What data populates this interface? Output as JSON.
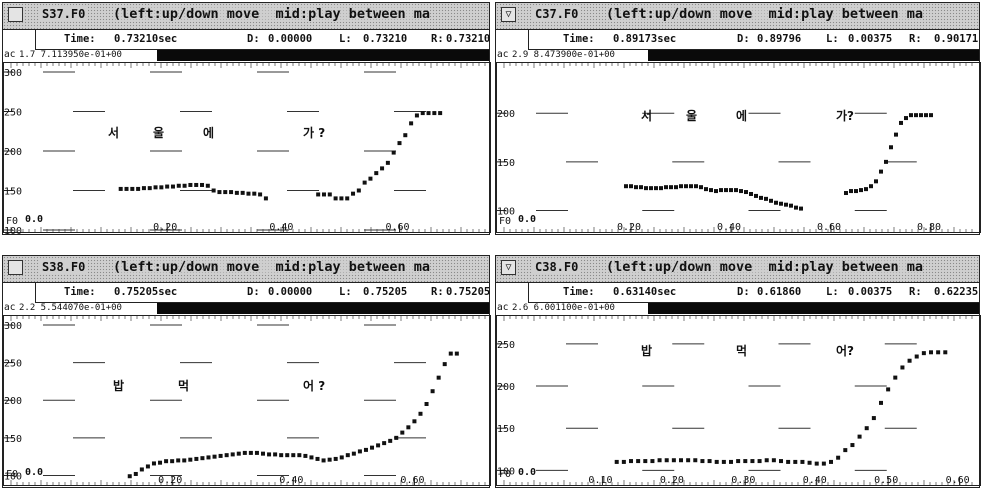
{
  "panels": [
    {
      "title": "S37.F0",
      "hint": "(left:up/down move  mid:play between ma",
      "time_label": "Time:",
      "time_value": "0.73210sec",
      "d_label": "D:",
      "d_value": "0.00000",
      "l_label": "L:",
      "l_value": "0.73210",
      "r_label": "R:",
      "r_value": "0.73210",
      "ac_label": "ac",
      "ac_value": "1.7 7.113950e-01+00",
      "f0_label": "F0",
      "zero_label": "0.0",
      "syllables": [
        "서",
        "울",
        "에",
        "가 ?"
      ],
      "chart_data": {
        "type": "scatter",
        "x_ticks": [
          "0.20",
          "0.40",
          "0.60"
        ],
        "y_ticks": [
          "300",
          "250",
          "200",
          "150",
          "100"
        ],
        "xlim": [
          0.0,
          0.73
        ],
        "ylim": [
          100,
          300
        ],
        "x": [
          0.12,
          0.13,
          0.14,
          0.15,
          0.16,
          0.17,
          0.18,
          0.19,
          0.2,
          0.21,
          0.22,
          0.23,
          0.24,
          0.25,
          0.26,
          0.27,
          0.28,
          0.29,
          0.3,
          0.31,
          0.32,
          0.33,
          0.34,
          0.35,
          0.36,
          0.37,
          0.46,
          0.47,
          0.48,
          0.49,
          0.5,
          0.51,
          0.52,
          0.53,
          0.54,
          0.55,
          0.56,
          0.57,
          0.58,
          0.59,
          0.6,
          0.61,
          0.62,
          0.63,
          0.64,
          0.65,
          0.66,
          0.67
        ],
        "y": [
          152,
          152,
          152,
          152,
          153,
          153,
          154,
          154,
          155,
          155,
          156,
          156,
          157,
          157,
          157,
          156,
          150,
          148,
          148,
          148,
          147,
          147,
          146,
          146,
          145,
          140,
          145,
          145,
          145,
          140,
          140,
          140,
          146,
          150,
          160,
          165,
          172,
          178,
          185,
          198,
          210,
          220,
          235,
          245,
          248,
          248,
          248,
          248
        ]
      }
    },
    {
      "title": "C37.F0",
      "hint": "(left:up/down move  mid:play between ma",
      "time_label": "Time:",
      "time_value": "0.89173sec",
      "d_label": "D:",
      "d_value": "0.89796",
      "l_label": "L:",
      "l_value": "0.00375",
      "r_label": "R:",
      "r_value": "0.90171",
      "ac_label": "ac",
      "ac_value": "2.9 8.473900e-01+00",
      "f0_label": "F0",
      "zero_label": "0.0",
      "syllables": [
        "서",
        "울",
        "에",
        "가?"
      ],
      "chart_data": {
        "type": "scatter",
        "x_ticks": [
          "0.20",
          "0.40",
          "0.60",
          "0.80"
        ],
        "y_ticks": [
          "200",
          "150",
          "100"
        ],
        "xlim": [
          0.0,
          0.9
        ],
        "ylim": [
          80,
          230
        ],
        "x": [
          0.19,
          0.2,
          0.21,
          0.22,
          0.23,
          0.24,
          0.25,
          0.26,
          0.27,
          0.28,
          0.29,
          0.3,
          0.31,
          0.32,
          0.33,
          0.34,
          0.35,
          0.36,
          0.37,
          0.38,
          0.39,
          0.4,
          0.41,
          0.42,
          0.43,
          0.44,
          0.45,
          0.46,
          0.47,
          0.48,
          0.49,
          0.5,
          0.51,
          0.52,
          0.53,
          0.54,
          0.63,
          0.64,
          0.65,
          0.66,
          0.67,
          0.68,
          0.69,
          0.7,
          0.71,
          0.72,
          0.73,
          0.74,
          0.75,
          0.76,
          0.77,
          0.78,
          0.79,
          0.8
        ],
        "y": [
          125,
          125,
          124,
          124,
          123,
          123,
          123,
          123,
          124,
          124,
          124,
          125,
          125,
          125,
          125,
          124,
          122,
          121,
          120,
          121,
          121,
          121,
          121,
          120,
          119,
          117,
          115,
          113,
          112,
          110,
          108,
          107,
          106,
          105,
          103,
          102,
          118,
          120,
          120,
          121,
          122,
          125,
          130,
          140,
          150,
          165,
          178,
          190,
          195,
          198,
          198,
          198,
          198,
          198
        ]
      }
    },
    {
      "title": "S38.F0",
      "hint": "(left:up/down move  mid:play between ma",
      "time_label": "Time:",
      "time_value": "0.75205sec",
      "d_label": "D:",
      "d_value": "0.00000",
      "l_label": "L:",
      "l_value": "0.75205",
      "r_label": "R:",
      "r_value": "0.75205",
      "ac_label": "ac",
      "ac_value": "2.2 5.544070e-01+00",
      "f0_label": "F0",
      "zero_label": "0.0",
      "syllables": [
        "밥",
        "먹",
        "어 ?"
      ],
      "chart_data": {
        "type": "scatter",
        "x_ticks": [
          "0.20",
          "0.40",
          "0.60"
        ],
        "y_ticks": [
          "300",
          "250",
          "200",
          "150",
          "100"
        ],
        "xlim": [
          0.0,
          0.7
        ],
        "ylim": [
          90,
          300
        ],
        "x": [
          0.13,
          0.14,
          0.15,
          0.16,
          0.17,
          0.18,
          0.19,
          0.2,
          0.21,
          0.22,
          0.23,
          0.24,
          0.25,
          0.26,
          0.27,
          0.28,
          0.29,
          0.3,
          0.31,
          0.32,
          0.33,
          0.34,
          0.35,
          0.36,
          0.37,
          0.38,
          0.39,
          0.4,
          0.41,
          0.42,
          0.43,
          0.44,
          0.45,
          0.46,
          0.47,
          0.48,
          0.49,
          0.5,
          0.51,
          0.52,
          0.53,
          0.54,
          0.55,
          0.56,
          0.57,
          0.58,
          0.59,
          0.6,
          0.61,
          0.62,
          0.63,
          0.64,
          0.65,
          0.66,
          0.67
        ],
        "y": [
          99,
          102,
          108,
          112,
          116,
          117,
          119,
          119,
          120,
          120,
          121,
          122,
          123,
          124,
          125,
          126,
          127,
          128,
          129,
          130,
          130,
          130,
          129,
          128,
          128,
          127,
          127,
          127,
          127,
          126,
          124,
          122,
          120,
          121,
          122,
          124,
          127,
          129,
          132,
          134,
          137,
          140,
          143,
          146,
          150,
          157,
          164,
          172,
          182,
          195,
          212,
          230,
          248,
          262,
          262
        ]
      }
    },
    {
      "title": "C38.F0",
      "hint": "(left:up/down move  mid:play between ma",
      "time_label": "Time:",
      "time_value": "0.63140sec",
      "d_label": "D:",
      "d_value": "0.61860",
      "l_label": "L:",
      "l_value": "0.00375",
      "r_label": "R:",
      "r_value": "0.62235",
      "ac_label": "ac",
      "ac_value": "2.6 6.001100e-01+00",
      "f0_label": "F0",
      "zero_label": "0.0",
      "syllables": [
        "밥",
        "먹",
        "어?"
      ],
      "chart_data": {
        "type": "scatter",
        "x_ticks": [
          "0.10",
          "0.20",
          "0.30",
          "0.40",
          "0.50",
          "0.60"
        ],
        "y_ticks": [
          "250",
          "200",
          "150",
          "100"
        ],
        "xlim": [
          0.0,
          0.63
        ],
        "ylim": [
          85,
          270
        ],
        "x": [
          0.12,
          0.13,
          0.14,
          0.15,
          0.16,
          0.17,
          0.18,
          0.19,
          0.2,
          0.21,
          0.22,
          0.23,
          0.24,
          0.25,
          0.26,
          0.27,
          0.28,
          0.29,
          0.3,
          0.31,
          0.32,
          0.33,
          0.34,
          0.35,
          0.36,
          0.37,
          0.38,
          0.39,
          0.4,
          0.41,
          0.42,
          0.43,
          0.44,
          0.45,
          0.46,
          0.47,
          0.48,
          0.49,
          0.5,
          0.51,
          0.52,
          0.53,
          0.54,
          0.55,
          0.56,
          0.57,
          0.58
        ],
        "y": [
          110,
          110,
          111,
          111,
          111,
          111,
          112,
          112,
          112,
          112,
          112,
          112,
          111,
          111,
          110,
          110,
          110,
          111,
          111,
          111,
          111,
          112,
          112,
          111,
          110,
          110,
          110,
          109,
          108,
          108,
          110,
          115,
          124,
          130,
          140,
          150,
          162,
          180,
          196,
          210,
          222,
          230,
          235,
          239,
          240,
          240,
          240
        ]
      }
    }
  ]
}
